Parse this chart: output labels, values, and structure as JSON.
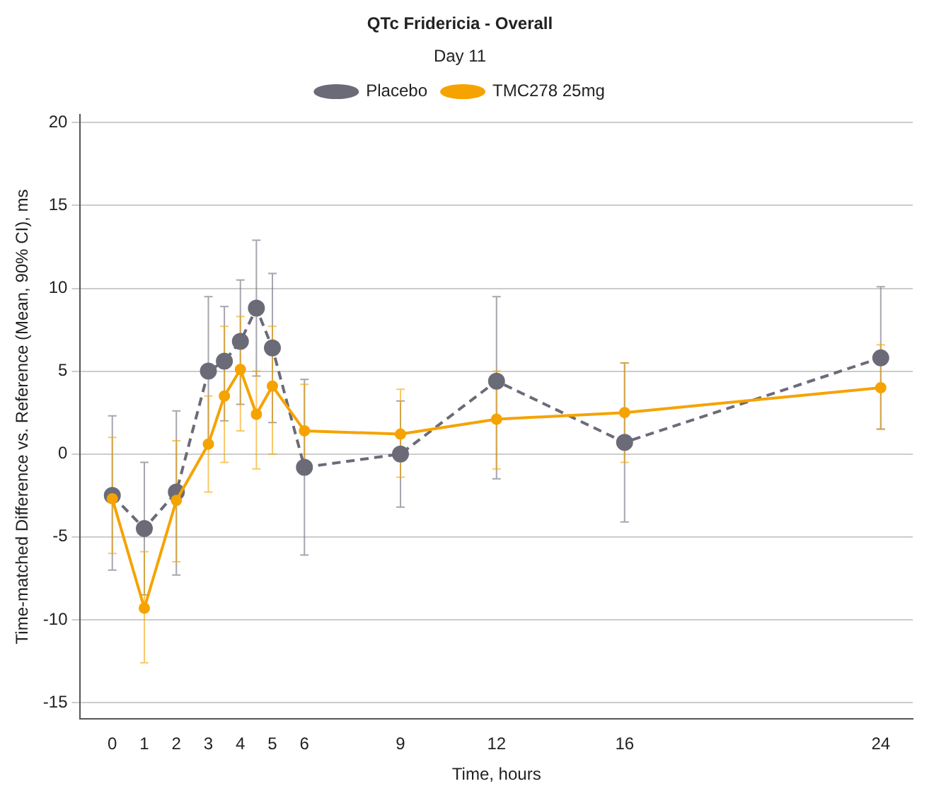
{
  "chart_data": {
    "type": "line",
    "title": "QTc Fridericia - Overall",
    "legend_title": "Day 11",
    "xlabel": "Time, hours",
    "ylabel": "Time-matched Difference vs. Reference (Mean, 90% CI), ms",
    "x": [
      0,
      1,
      2,
      3,
      3.5,
      4,
      4.5,
      5,
      6,
      9,
      12,
      16,
      24
    ],
    "series": [
      {
        "name": "Placebo",
        "color": "#6b6b78",
        "line_style": "dashed",
        "values": [
          -2.5,
          -4.5,
          -2.3,
          5.0,
          5.6,
          6.8,
          8.8,
          6.4,
          -0.8,
          0,
          4.4,
          0.7,
          5.8
        ],
        "errors": [
          [
            -7,
            2.3
          ],
          [
            -8.5,
            -0.5
          ],
          [
            -7.3,
            2.6
          ],
          [
            0.5,
            9.5
          ],
          [
            2,
            8.9
          ],
          [
            3,
            10.5
          ],
          [
            4.7,
            12.9
          ],
          [
            1.9,
            10.9
          ],
          [
            -6.1,
            4.5
          ],
          [
            -3.2,
            3.2
          ],
          [
            -1.5,
            9.5
          ],
          [
            -4.1,
            5.5
          ],
          [
            1.5,
            10.1
          ]
        ]
      },
      {
        "name": "TMC278 25mg",
        "color": "#f5a300",
        "line_style": "solid",
        "values": [
          -2.7,
          -9.3,
          -2.8,
          0.6,
          3.5,
          5.1,
          2.4,
          4.1,
          1.4,
          1.2,
          2.1,
          2.5,
          4.0
        ],
        "errors": [
          [
            -6,
            1
          ],
          [
            -12.6,
            -5.9
          ],
          [
            -6.5,
            0.8
          ],
          [
            -2.3,
            3.5
          ],
          [
            -0.5,
            7.7
          ],
          [
            1.4,
            8.3
          ],
          [
            -0.9,
            5
          ],
          [
            0,
            7.7
          ],
          [
            -1.1,
            4.2
          ],
          [
            -1.4,
            3.9
          ],
          [
            -0.9,
            5
          ],
          [
            -0.5,
            5.5
          ],
          [
            1.5,
            6.6
          ]
        ]
      }
    ],
    "xlim": [
      -1,
      25
    ],
    "xticks": [
      0,
      1,
      2,
      3,
      4,
      5,
      6,
      9,
      12,
      16,
      24
    ],
    "ylim": [
      -16,
      20.5
    ],
    "yticks": [
      -15,
      -10,
      -5,
      0,
      5,
      10,
      15,
      20
    ],
    "grid": "y",
    "legend": "top",
    "marker": "circle"
  }
}
